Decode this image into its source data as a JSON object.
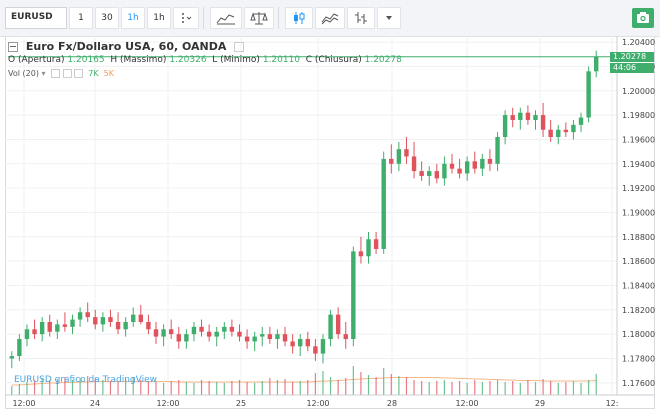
{
  "toolbar": {
    "symbol": "EURUSD",
    "intervals": [
      "1",
      "30",
      "1h",
      "1h"
    ],
    "active_interval_index": 2
  },
  "legend": {
    "title": "Euro Fx/Dollaro USA, 60, OANDA",
    "o_label": "O (Apertura)",
    "o_value": "1.20165",
    "h_label": "H (Massimo)",
    "h_value": "1.20326",
    "l_label": "L (Minimo)",
    "l_value": "1.20110",
    "c_label": "C (Chiusura)",
    "c_value": "1.20278",
    "vol_label": "Vol (20)",
    "vol_value1": "7K",
    "vol_value2": "5K"
  },
  "watermark": "EURUSD grafico da TradingView",
  "price_tags": {
    "last_price": "1.20278",
    "countdown": "44:06"
  },
  "colors": {
    "up": "#3fae6c",
    "down": "#e0525c",
    "volume_ma": "#f5b88a",
    "accent": "#2196f3"
  },
  "chart_data": {
    "type": "candlestick",
    "title": "Euro Fx/Dollaro USA, 60, OANDA",
    "y_ticks": [
      "1.20400",
      "1.20200",
      "1.20000",
      "1.19800",
      "1.19600",
      "1.19400",
      "1.19200",
      "1.19000",
      "1.18800",
      "1.18600",
      "1.18400",
      "1.18200",
      "1.18000",
      "1.17800",
      "1.17600"
    ],
    "x_ticks": [
      "12:00",
      "24",
      "12:00",
      "25",
      "12:00",
      "28",
      "12:00",
      "29",
      "12:"
    ],
    "ylim": [
      1.175,
      1.2045
    ],
    "candles": [
      [
        1.178,
        1.1786,
        1.1772,
        1.1782
      ],
      [
        1.1782,
        1.18,
        1.1778,
        1.1796
      ],
      [
        1.1796,
        1.1808,
        1.179,
        1.1804
      ],
      [
        1.1804,
        1.1812,
        1.1796,
        1.18
      ],
      [
        1.18,
        1.1814,
        1.1794,
        1.181
      ],
      [
        1.181,
        1.1816,
        1.1798,
        1.1802
      ],
      [
        1.1802,
        1.1812,
        1.1796,
        1.1808
      ],
      [
        1.1808,
        1.1818,
        1.1802,
        1.1806
      ],
      [
        1.1806,
        1.1816,
        1.18,
        1.1812
      ],
      [
        1.1812,
        1.1822,
        1.1806,
        1.1818
      ],
      [
        1.1818,
        1.1826,
        1.181,
        1.1814
      ],
      [
        1.1814,
        1.182,
        1.1804,
        1.1808
      ],
      [
        1.1808,
        1.1818,
        1.1802,
        1.1814
      ],
      [
        1.1814,
        1.182,
        1.1806,
        1.181
      ],
      [
        1.181,
        1.1818,
        1.18,
        1.1804
      ],
      [
        1.1804,
        1.1814,
        1.1798,
        1.181
      ],
      [
        1.181,
        1.1822,
        1.1806,
        1.1816
      ],
      [
        1.1816,
        1.1824,
        1.1808,
        1.181
      ],
      [
        1.181,
        1.1816,
        1.18,
        1.1804
      ],
      [
        1.1804,
        1.181,
        1.1792,
        1.1798
      ],
      [
        1.1798,
        1.1808,
        1.179,
        1.1804
      ],
      [
        1.1804,
        1.1812,
        1.1796,
        1.18
      ],
      [
        1.18,
        1.1806,
        1.1788,
        1.1794
      ],
      [
        1.1794,
        1.1804,
        1.1788,
        1.18
      ],
      [
        1.18,
        1.181,
        1.1794,
        1.1806
      ],
      [
        1.1806,
        1.1812,
        1.1798,
        1.1802
      ],
      [
        1.1802,
        1.1808,
        1.1794,
        1.1798
      ],
      [
        1.1798,
        1.1806,
        1.179,
        1.1802
      ],
      [
        1.1802,
        1.181,
        1.1796,
        1.1806
      ],
      [
        1.1806,
        1.1812,
        1.1798,
        1.1802
      ],
      [
        1.1802,
        1.1808,
        1.1794,
        1.1798
      ],
      [
        1.1798,
        1.1804,
        1.1788,
        1.1794
      ],
      [
        1.1794,
        1.1802,
        1.1786,
        1.1798
      ],
      [
        1.1798,
        1.1806,
        1.179,
        1.18
      ],
      [
        1.18,
        1.1806,
        1.1792,
        1.1796
      ],
      [
        1.1796,
        1.1804,
        1.1788,
        1.18
      ],
      [
        1.18,
        1.1806,
        1.179,
        1.1794
      ],
      [
        1.1794,
        1.18,
        1.1784,
        1.179
      ],
      [
        1.179,
        1.18,
        1.1782,
        1.1796
      ],
      [
        1.1796,
        1.1802,
        1.1786,
        1.179
      ],
      [
        1.179,
        1.1796,
        1.1778,
        1.1784
      ],
      [
        1.1784,
        1.18,
        1.1776,
        1.1796
      ],
      [
        1.1796,
        1.182,
        1.179,
        1.1816
      ],
      [
        1.1816,
        1.1822,
        1.1796,
        1.18
      ],
      [
        1.18,
        1.181,
        1.1788,
        1.1796
      ],
      [
        1.1796,
        1.1872,
        1.179,
        1.1868
      ],
      [
        1.1868,
        1.188,
        1.1858,
        1.1864
      ],
      [
        1.1864,
        1.1884,
        1.1858,
        1.1878
      ],
      [
        1.1878,
        1.1884,
        1.1866,
        1.187
      ],
      [
        1.187,
        1.195,
        1.1866,
        1.1944
      ],
      [
        1.1944,
        1.1956,
        1.1932,
        1.194
      ],
      [
        1.194,
        1.1958,
        1.1934,
        1.1952
      ],
      [
        1.1952,
        1.1962,
        1.194,
        1.1946
      ],
      [
        1.1946,
        1.1958,
        1.1928,
        1.1934
      ],
      [
        1.1934,
        1.1942,
        1.1926,
        1.193
      ],
      [
        1.193,
        1.1938,
        1.1922,
        1.1934
      ],
      [
        1.1934,
        1.194,
        1.1924,
        1.1928
      ],
      [
        1.1928,
        1.1946,
        1.1922,
        1.194
      ],
      [
        1.194,
        1.1948,
        1.1932,
        1.1936
      ],
      [
        1.1936,
        1.1944,
        1.1928,
        1.1932
      ],
      [
        1.1932,
        1.1946,
        1.1926,
        1.1942
      ],
      [
        1.1942,
        1.195,
        1.1932,
        1.1936
      ],
      [
        1.1936,
        1.1948,
        1.193,
        1.1944
      ],
      [
        1.1944,
        1.1952,
        1.1934,
        1.194
      ],
      [
        1.194,
        1.1966,
        1.1934,
        1.1962
      ],
      [
        1.1962,
        1.1984,
        1.1956,
        1.198
      ],
      [
        1.198,
        1.1986,
        1.197,
        1.1976
      ],
      [
        1.1976,
        1.1986,
        1.1968,
        1.1982
      ],
      [
        1.1982,
        1.1988,
        1.1972,
        1.1976
      ],
      [
        1.1976,
        1.1984,
        1.1968,
        1.198
      ],
      [
        1.198,
        1.199,
        1.1962,
        1.1968
      ],
      [
        1.1968,
        1.1976,
        1.1958,
        1.1962
      ],
      [
        1.1962,
        1.1972,
        1.1956,
        1.1968
      ],
      [
        1.1968,
        1.1974,
        1.1962,
        1.1966
      ],
      [
        1.1966,
        1.1976,
        1.196,
        1.1972
      ],
      [
        1.1972,
        1.1982,
        1.1966,
        1.1978
      ],
      [
        1.1978,
        1.202,
        1.1974,
        1.2016
      ],
      [
        1.2016,
        1.2033,
        1.2011,
        1.2028
      ]
    ],
    "volumes": [
      18,
      22,
      26,
      30,
      34,
      30,
      32,
      36,
      30,
      34,
      38,
      34,
      30,
      28,
      26,
      32,
      36,
      30,
      28,
      26,
      24,
      28,
      30,
      26,
      24,
      30,
      28,
      26,
      24,
      28,
      30,
      26,
      24,
      28,
      34,
      30,
      32,
      26,
      28,
      30,
      44,
      48,
      36,
      30,
      34,
      58,
      46,
      40,
      36,
      54,
      42,
      38,
      36,
      30,
      28,
      26,
      28,
      30,
      26,
      28,
      24,
      30,
      26,
      28,
      30,
      26,
      28,
      24,
      30,
      26,
      32,
      28,
      24,
      26,
      28,
      24,
      30,
      42
    ],
    "volume_ma": [
      20,
      20,
      21,
      22,
      23,
      24,
      24,
      25,
      25,
      26,
      26,
      27,
      27,
      27,
      27,
      27,
      27,
      27,
      27,
      27,
      27,
      27,
      26,
      26,
      26,
      26,
      26,
      26,
      26,
      26,
      26,
      26,
      26,
      26,
      26,
      26,
      26,
      26,
      26,
      26,
      27,
      28,
      28,
      29,
      30,
      31,
      32,
      33,
      33,
      34,
      35,
      35,
      35,
      35,
      35,
      35,
      35,
      34,
      34,
      33,
      33,
      32,
      32,
      31,
      31,
      30,
      30,
      29,
      29,
      29,
      28,
      28,
      28,
      28,
      28,
      28,
      28,
      29
    ]
  }
}
